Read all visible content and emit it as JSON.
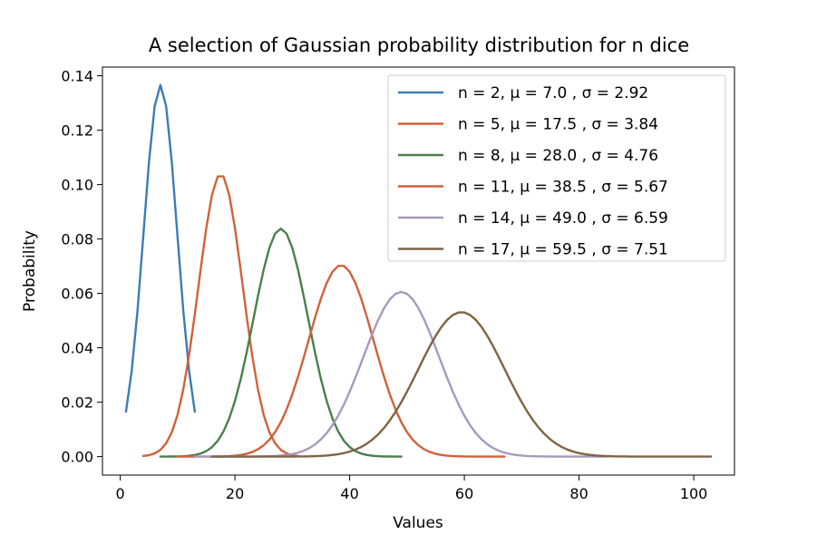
{
  "chart_data": {
    "type": "line",
    "title": "A selection of Gaussian probability distribution for n dice",
    "xlabel": "Values",
    "ylabel": "Probability",
    "xlim": [
      -3.1,
      107.1
    ],
    "ylim": [
      -0.0068,
      0.1432
    ],
    "xticks": [
      0,
      20,
      40,
      60,
      80,
      100
    ],
    "xtick_labels": [
      "0",
      "20",
      "40",
      "60",
      "80",
      "100"
    ],
    "yticks": [
      0.0,
      0.02,
      0.04,
      0.06,
      0.08,
      0.1,
      0.12,
      0.14
    ],
    "ytick_labels": [
      "0.00",
      "0.02",
      "0.04",
      "0.06",
      "0.08",
      "0.10",
      "0.12",
      "0.14"
    ],
    "grid": false,
    "legend_position": "top-right",
    "series": [
      {
        "name": "n = 2, μ = 7.0 , σ = 2.92",
        "label": "n = 2, μ = 7.0 , σ = 2.92",
        "n": 2,
        "mu": 7.0,
        "sigma": 2.92,
        "x_start": 1,
        "x_end": 13,
        "color": "#3d7bb6"
      },
      {
        "name": "n = 5, μ = 17.5 , σ = 3.84",
        "label": "n = 5, μ = 17.5 , σ = 3.84",
        "n": 5,
        "mu": 17.5,
        "sigma": 3.84,
        "x_start": 4,
        "x_end": 31,
        "color": "#d2613a"
      },
      {
        "name": "n = 8, μ = 28.0 , σ = 4.76",
        "label": "n = 8, μ = 28.0 , σ = 4.76",
        "n": 8,
        "mu": 28.0,
        "sigma": 4.76,
        "x_start": 7,
        "x_end": 49,
        "color": "#4c7f4c"
      },
      {
        "name": "n = 11, μ = 38.5 , σ = 5.67",
        "label": "n = 11, μ = 38.5 , σ = 5.67",
        "n": 11,
        "mu": 38.5,
        "sigma": 5.67,
        "x_start": 10,
        "x_end": 67,
        "color": "#d2613a"
      },
      {
        "name": "n = 14, μ = 49.0 , σ = 6.59",
        "label": "n = 14, μ = 49.0 , σ = 6.59",
        "n": 14,
        "mu": 49.0,
        "sigma": 6.59,
        "x_start": 13,
        "x_end": 85,
        "color": "#a899bd"
      },
      {
        "name": "n = 17, μ = 59.5 , σ = 7.51",
        "label": "n = 17, μ = 59.5 , σ = 7.51",
        "n": 17,
        "mu": 59.5,
        "sigma": 7.51,
        "x_start": 16,
        "x_end": 103,
        "color": "#7f6444"
      }
    ]
  }
}
